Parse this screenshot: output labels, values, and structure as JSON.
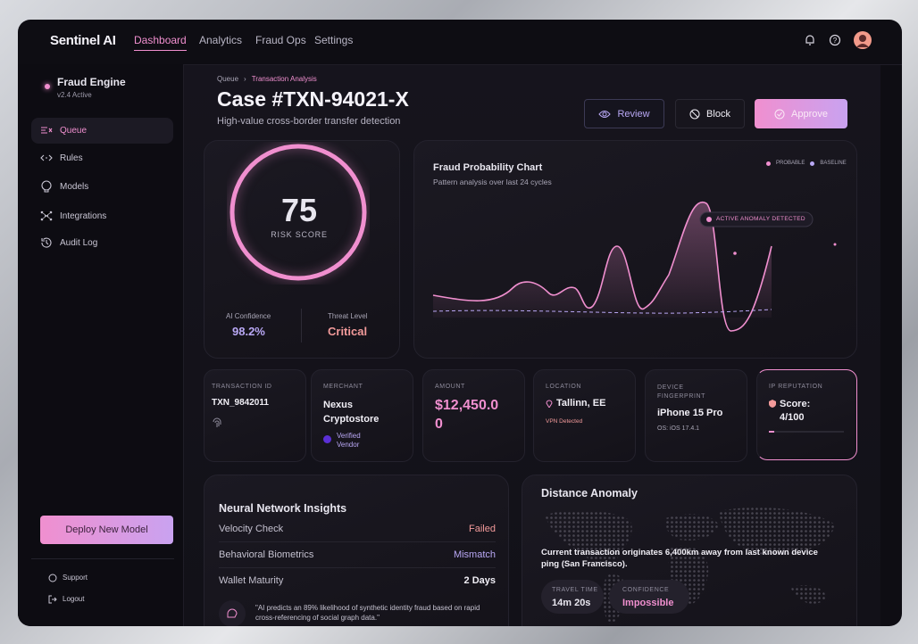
{
  "nav": {
    "brand": "Sentinel AI",
    "items": [
      "Dashboard",
      "Analytics",
      "Fraud Ops",
      "Settings"
    ]
  },
  "sidebar": {
    "engine": {
      "name": "Fraud Engine",
      "version": "v2.4 Active"
    },
    "menu": [
      "Queue",
      "Rules",
      "Models",
      "Integrations",
      "Audit Log"
    ],
    "deploy": "Deploy New Model",
    "footer": [
      "Support",
      "Logout"
    ]
  },
  "header": {
    "breadcrumb": [
      "Queue",
      "Transaction Analysis"
    ],
    "title": "Case #TXN-94021-X",
    "subtitle": "High-value cross-border transfer detection",
    "actions": [
      "Review",
      "Block",
      "Approve"
    ]
  },
  "risk": {
    "score": "75",
    "label": "RISK SCORE",
    "stats": [
      {
        "label": "AI Confidence",
        "value": "98.2%"
      },
      {
        "label": "Threat Level",
        "value": "Critical"
      }
    ]
  },
  "chart": {
    "title": "Fraud Probability Chart",
    "subtitle": "Pattern analysis over last 24 cycles",
    "legend": [
      "PROBABLE",
      "BASELINE"
    ],
    "annotation": "ACTIVE ANOMALY DETECTED"
  },
  "details": [
    {
      "label": "TRANSACTION ID",
      "value": "TXN_9842011"
    },
    {
      "label": "MERCHANT",
      "value": "Nexus Cryptostore",
      "note": "Verified Vendor"
    },
    {
      "label": "AMOUNT",
      "value": "$12,450.00"
    },
    {
      "label": "LOCATION",
      "value": "Tallinn, EE",
      "note": "VPN Detected"
    },
    {
      "label": "DEVICE FINGERPRINT",
      "value": "iPhone 15 Pro",
      "note": "OS: iOS 17.4.1"
    },
    {
      "label": "IP REPUTATION",
      "value": "Score: 4/100"
    }
  ],
  "insights": {
    "title": "Neural Network Insights",
    "rows": [
      {
        "label": "Velocity Check",
        "value": "Failed"
      },
      {
        "label": "Behavioral Biometrics",
        "value": "Mismatch"
      },
      {
        "label": "Wallet Maturity",
        "value": "2 Days"
      }
    ],
    "note": "\"AI predicts an 89% likelihood of synthetic identity fraud based on rapid cross-referencing of social graph data.\""
  },
  "distance": {
    "title": "Distance Anomaly",
    "text": "Current transaction originates 6,400km away from last known device ping (San Francisco).",
    "stats": [
      {
        "label": "TRAVEL TIME",
        "value": "14m 20s"
      },
      {
        "label": "CONFIDENCE",
        "value": "Impossible"
      }
    ]
  }
}
